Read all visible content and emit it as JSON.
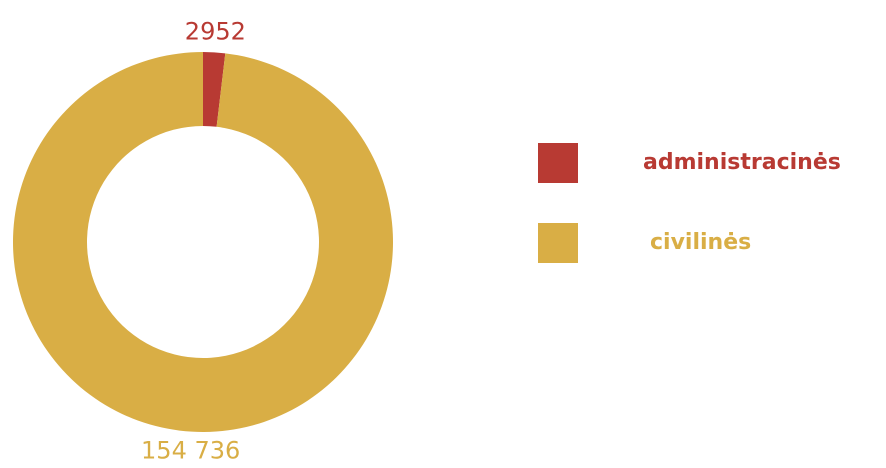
{
  "chart_data": {
    "type": "donut",
    "categories": [
      "administracinės",
      "civilinės"
    ],
    "values": [
      2952,
      154736
    ],
    "value_labels": [
      "2952",
      "154 736"
    ],
    "colors": [
      "#b83a33",
      "#d9ae45"
    ]
  }
}
